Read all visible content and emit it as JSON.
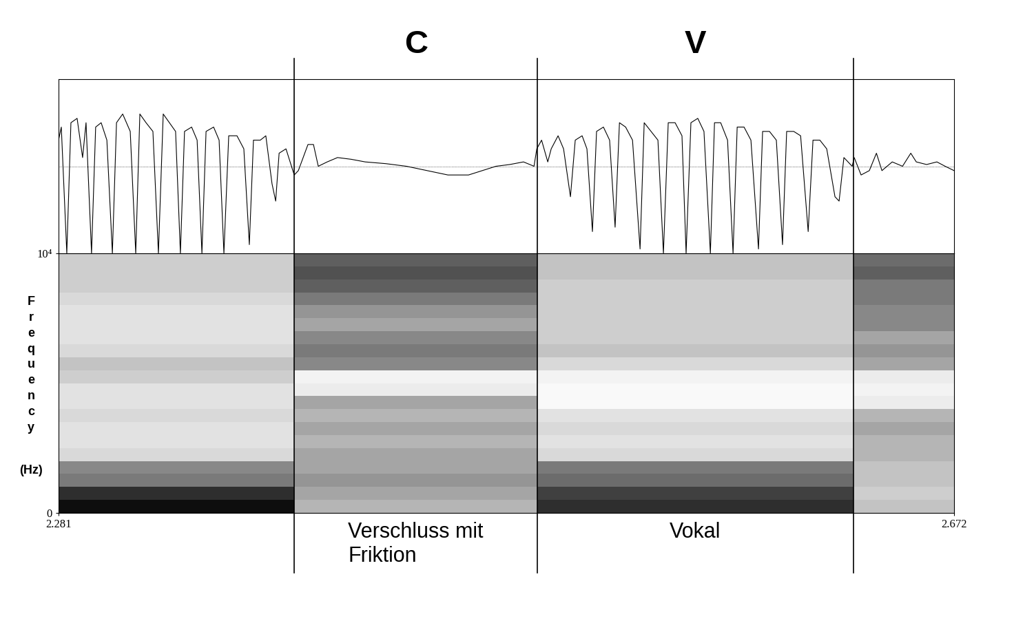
{
  "chart_data": {
    "type": "spectrogram",
    "xlim": [
      2.281,
      2.672
    ],
    "xticks": [
      2.281,
      2.672
    ],
    "ylim": [
      0,
      10000
    ],
    "yticks": [
      0,
      {
        "value": 10000,
        "label": "10⁴"
      }
    ],
    "y_label": "Frequency",
    "y_unit": "(Hz)",
    "freq_edges": [
      0,
      500,
      1000,
      1500,
      2000,
      2500,
      3000,
      3500,
      4000,
      4500,
      5000,
      5500,
      6000,
      6500,
      7000,
      7500,
      8000,
      8500,
      9000,
      9500,
      10000
    ],
    "intensity_range": [
      0,
      1
    ],
    "intensity": [
      [
        0.95,
        0.85,
        0.6,
        0.55,
        0.25,
        0.2,
        0.2,
        0.25,
        0.2,
        0.2,
        0.3,
        0.35,
        0.25,
        0.2,
        0.2,
        0.2,
        0.25,
        0.3,
        0.3,
        0.3
      ],
      [
        0.4,
        0.45,
        0.5,
        0.45,
        0.45,
        0.4,
        0.45,
        0.4,
        0.45,
        0.15,
        0.1,
        0.55,
        0.6,
        0.55,
        0.45,
        0.5,
        0.6,
        0.7,
        0.75,
        0.7
      ],
      [
        0.85,
        0.8,
        0.65,
        0.6,
        0.25,
        0.2,
        0.25,
        0.2,
        0.05,
        0.05,
        0.1,
        0.25,
        0.35,
        0.3,
        0.3,
        0.3,
        0.3,
        0.3,
        0.35,
        0.35
      ],
      [
        0.35,
        0.3,
        0.35,
        0.35,
        0.4,
        0.4,
        0.45,
        0.4,
        0.15,
        0.1,
        0.15,
        0.45,
        0.5,
        0.45,
        0.55,
        0.55,
        0.6,
        0.6,
        0.7,
        0.65
      ]
    ],
    "waveform": {
      "ylim": [
        -1,
        1
      ],
      "tick_labels": false,
      "t": [
        2.281,
        2.2822,
        2.2846,
        2.2864,
        2.2891,
        2.2915,
        2.293,
        2.2954,
        2.2972,
        2.2996,
        2.3021,
        2.3045,
        2.3063,
        2.309,
        2.3123,
        2.3147,
        2.3165,
        2.3192,
        2.3222,
        2.3246,
        2.3267,
        2.3294,
        2.3321,
        2.3342,
        2.336,
        2.3391,
        2.3415,
        2.3436,
        2.3454,
        2.3487,
        2.3511,
        2.3532,
        2.3553,
        2.3589,
        2.3619,
        2.3643,
        2.3661,
        2.3691,
        2.3715,
        2.3742,
        2.3758,
        2.3773,
        2.3803,
        2.3839,
        2.3857,
        2.3878,
        2.3899,
        2.3923,
        2.3944,
        2.3983,
        2.4028,
        2.4088,
        2.4149,
        2.4239,
        2.4329,
        2.4419,
        2.451,
        2.46,
        2.466,
        2.472,
        2.478,
        2.484,
        2.4886,
        2.4898,
        2.4919,
        2.4946,
        2.4961,
        2.4991,
        2.5015,
        2.5045,
        2.5066,
        2.5096,
        2.5117,
        2.5141,
        2.5159,
        2.5189,
        2.5216,
        2.524,
        2.5259,
        2.5286,
        2.5316,
        2.5349,
        2.5367,
        2.5397,
        2.5427,
        2.5451,
        2.5472,
        2.5502,
        2.5532,
        2.555,
        2.5571,
        2.5601,
        2.5628,
        2.5656,
        2.5674,
        2.5701,
        2.5731,
        2.5755,
        2.5773,
        2.5803,
        2.5833,
        2.5866,
        2.5884,
        2.5914,
        2.5944,
        2.5971,
        2.5989,
        2.602,
        2.605,
        2.6083,
        2.6104,
        2.6134,
        2.6164,
        2.62,
        2.6218,
        2.6239,
        2.6275,
        2.6284,
        2.6314,
        2.635,
        2.6381,
        2.6405,
        2.645,
        2.6495,
        2.6531,
        2.6555,
        2.66,
        2.6645,
        2.6681,
        2.672
      ],
      "amplitude": [
        0.3,
        0.45,
        -1.0,
        0.5,
        0.55,
        0.1,
        0.5,
        -1.0,
        0.45,
        0.5,
        0.3,
        -1.0,
        0.5,
        0.6,
        0.4,
        -1.0,
        0.6,
        0.5,
        0.4,
        -1.0,
        0.6,
        0.5,
        0.4,
        -1.0,
        0.4,
        0.45,
        0.3,
        -1.0,
        0.4,
        0.45,
        0.3,
        -1.0,
        0.35,
        0.35,
        0.2,
        -0.9,
        0.3,
        0.3,
        0.35,
        -0.2,
        -0.4,
        0.15,
        0.2,
        -0.1,
        -0.05,
        0.1,
        0.25,
        0.25,
        0.0,
        0.05,
        0.1,
        0.08,
        0.05,
        0.03,
        0.0,
        -0.05,
        -0.1,
        -0.1,
        -0.05,
        0.0,
        0.02,
        0.05,
        0.0,
        0.2,
        0.3,
        0.05,
        0.2,
        0.35,
        0.2,
        -0.35,
        0.3,
        0.35,
        0.2,
        -0.75,
        0.4,
        0.45,
        0.3,
        -0.7,
        0.5,
        0.45,
        0.3,
        -0.95,
        0.5,
        0.4,
        0.3,
        -1.0,
        0.5,
        0.5,
        0.35,
        -1.0,
        0.5,
        0.55,
        0.4,
        -1.0,
        0.5,
        0.5,
        0.3,
        -1.0,
        0.45,
        0.45,
        0.3,
        -0.95,
        0.4,
        0.4,
        0.3,
        -0.9,
        0.4,
        0.4,
        0.35,
        -0.75,
        0.3,
        0.3,
        0.2,
        -0.35,
        -0.4,
        0.1,
        0.0,
        0.1,
        -0.1,
        -0.05,
        0.15,
        -0.05,
        0.05,
        0.0,
        0.15,
        0.05,
        0.02,
        0.05,
        0.0,
        -0.05
      ]
    },
    "segments": {
      "boundaries": [
        2.384,
        2.49,
        2.628
      ],
      "top_labels": [
        null,
        "C",
        "V",
        null
      ],
      "bottom_labels": [
        null,
        "Verschluss mit\nFriktion",
        "Vokal",
        null
      ]
    }
  }
}
